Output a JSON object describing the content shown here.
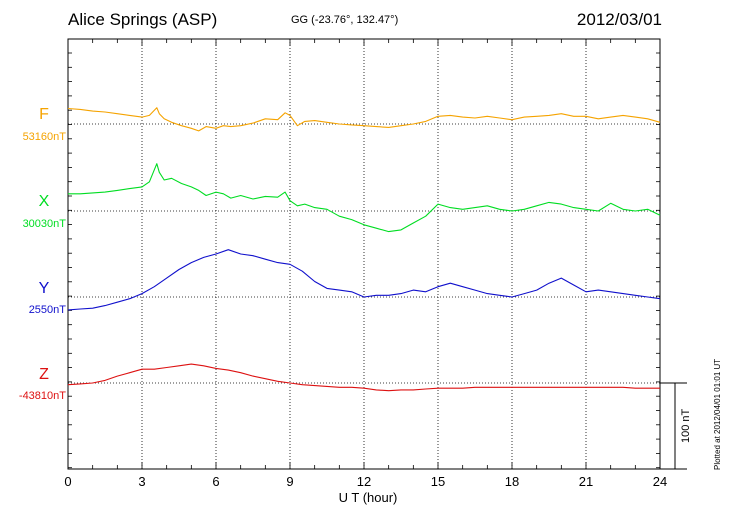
{
  "header": {
    "station": "Alice Springs (ASP)",
    "coordinates": "GG (-23.76°, 132.47°)",
    "date": "2012/03/01"
  },
  "footer": {
    "plotted": "Plotted at 2012/04/01 01:01 UT",
    "scale_label": "100 nT"
  },
  "chart_data": {
    "type": "line",
    "title": "Alice Springs (ASP)",
    "xlabel": "U T (hour)",
    "ylabel": "",
    "xlim": [
      0,
      24
    ],
    "xticks": [
      0,
      3,
      6,
      9,
      12,
      15,
      18,
      21,
      24
    ],
    "grid": true,
    "scale_bar_nT": 100,
    "series": [
      {
        "name": "F",
        "baseline": "53160nT",
        "color": "#f5a300",
        "x": [
          0,
          0.5,
          1,
          1.5,
          2,
          2.5,
          3,
          3.3,
          3.6,
          3.7,
          3.9,
          4.2,
          4.6,
          5,
          5.3,
          5.6,
          6,
          6.3,
          6.6,
          7,
          7.5,
          8,
          8.5,
          8.8,
          9,
          9.3,
          9.6,
          10,
          10.5,
          11,
          11.5,
          12,
          12.5,
          13,
          13.5,
          14,
          14.5,
          15,
          15.5,
          16,
          16.5,
          17,
          17.5,
          18,
          18.5,
          19,
          19.5,
          20,
          20.5,
          21,
          21.5,
          22,
          22.5,
          23,
          23.5,
          24
        ],
        "values": [
          18,
          17,
          15,
          14,
          12,
          10,
          8,
          10,
          19,
          12,
          6,
          2,
          -2,
          -5,
          -8,
          -3,
          -5,
          -2,
          -3,
          -2,
          1,
          6,
          5,
          13,
          10,
          -2,
          3,
          4,
          2,
          0,
          -1,
          -2,
          -3,
          -4,
          -2,
          0,
          3,
          9,
          10,
          8,
          7,
          9,
          7,
          5,
          8,
          9,
          10,
          12,
          9,
          9,
          6,
          8,
          10,
          8,
          6,
          2
        ]
      },
      {
        "name": "X",
        "baseline": "30030nT",
        "color": "#00dd22",
        "x": [
          0,
          0.5,
          1,
          1.5,
          2,
          2.5,
          3,
          3.3,
          3.6,
          3.7,
          3.9,
          4.2,
          4.6,
          5,
          5.3,
          5.6,
          6,
          6.3,
          6.6,
          7,
          7.5,
          8,
          8.5,
          8.8,
          9,
          9.3,
          9.6,
          10,
          10.5,
          11,
          11.5,
          12,
          12.5,
          13,
          13.5,
          14,
          14.5,
          15,
          15.5,
          16,
          16.5,
          17,
          17.5,
          18,
          18.5,
          19,
          19.5,
          20,
          20.5,
          21,
          21.5,
          22,
          22.5,
          23,
          23.5,
          24
        ],
        "values": [
          20,
          20,
          21,
          22,
          24,
          26,
          28,
          34,
          55,
          45,
          36,
          38,
          32,
          28,
          24,
          18,
          22,
          20,
          15,
          18,
          14,
          17,
          16,
          22,
          12,
          6,
          8,
          4,
          2,
          -6,
          -10,
          -16,
          -20,
          -24,
          -22,
          -14,
          -6,
          8,
          4,
          2,
          4,
          6,
          2,
          0,
          2,
          6,
          10,
          8,
          4,
          2,
          0,
          9,
          2,
          0,
          2,
          -5
        ]
      },
      {
        "name": "Y",
        "baseline": "2550nT",
        "color": "#1010cc",
        "x": [
          0,
          0.5,
          1,
          1.5,
          2,
          2.5,
          3,
          3.5,
          4,
          4.5,
          5,
          5.5,
          6,
          6.5,
          7,
          7.5,
          8,
          8.5,
          9,
          9.5,
          10,
          10.5,
          11,
          11.5,
          12,
          12.5,
          13,
          13.5,
          14,
          14.5,
          15,
          15.5,
          16,
          16.5,
          17,
          17.5,
          18,
          18.5,
          19,
          19.5,
          20,
          20.5,
          21,
          21.5,
          22,
          22.5,
          23,
          23.5,
          24
        ],
        "values": [
          -15,
          -14,
          -13,
          -10,
          -6,
          -2,
          4,
          12,
          22,
          32,
          40,
          46,
          50,
          55,
          50,
          48,
          44,
          40,
          38,
          30,
          18,
          10,
          8,
          6,
          0,
          2,
          2,
          4,
          8,
          6,
          12,
          16,
          12,
          8,
          4,
          2,
          0,
          4,
          8,
          16,
          22,
          14,
          6,
          8,
          6,
          4,
          2,
          0,
          -2
        ]
      },
      {
        "name": "Z",
        "baseline": "-43810nT",
        "color": "#dd1111",
        "x": [
          0,
          0.5,
          1,
          1.5,
          2,
          2.5,
          3,
          3.5,
          4,
          4.5,
          5,
          5.5,
          6,
          6.5,
          7,
          7.5,
          8,
          8.5,
          9,
          9.5,
          10,
          10.5,
          11,
          11.5,
          12,
          12.5,
          13,
          13.5,
          14,
          14.5,
          15,
          15.5,
          16,
          16.5,
          17,
          17.5,
          18,
          18.5,
          19,
          19.5,
          20,
          20.5,
          21,
          21.5,
          22,
          22.5,
          23,
          23.5,
          24
        ],
        "values": [
          -2,
          -1,
          0,
          3,
          8,
          12,
          16,
          16,
          18,
          20,
          22,
          20,
          17,
          15,
          12,
          8,
          5,
          2,
          0,
          -2,
          -3,
          -4,
          -5,
          -5,
          -6,
          -8,
          -9,
          -8,
          -8,
          -7,
          -6,
          -6,
          -6,
          -5,
          -5,
          -5,
          -5,
          -5,
          -5,
          -5,
          -5,
          -5,
          -5,
          -5,
          -5,
          -5,
          -6,
          -6,
          -6
        ]
      }
    ]
  }
}
